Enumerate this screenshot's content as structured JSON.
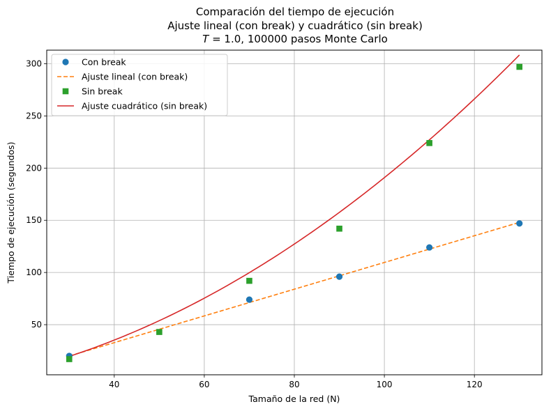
{
  "chart_data": {
    "type": "scatter",
    "title_lines": [
      "Comparación del tiempo de ejecución",
      "Ajuste lineal (con break) y cuadrático (sin break)"
    ],
    "title_math": {
      "variable": "T",
      "value": " = 1.0, 100000 pasos Monte Carlo"
    },
    "xlabel": "Tamaño de la red (N)",
    "ylabel": "Tiempo de ejecución (segundos)",
    "xlim": [
      25,
      135
    ],
    "ylim": [
      2,
      313
    ],
    "x_ticks": [
      40,
      60,
      80,
      100,
      120
    ],
    "y_ticks": [
      50,
      100,
      150,
      200,
      250,
      300
    ],
    "grid": true,
    "legend_position": "upper-left",
    "series": [
      {
        "name": "Con break",
        "kind": "points",
        "marker": "circle",
        "color": "#1f77b4",
        "x": [
          30,
          70,
          90,
          110,
          130
        ],
        "y": [
          20,
          74,
          96,
          124,
          147
        ]
      },
      {
        "name": "Ajuste lineal (con break)",
        "kind": "line",
        "style": "dashed",
        "color": "#ff7f0e",
        "fit": "linear",
        "x_range": [
          30,
          130
        ],
        "coefficients": [
          -18.4,
          1.28
        ]
      },
      {
        "name": "Sin break",
        "kind": "points",
        "marker": "square",
        "color": "#2ca02c",
        "x": [
          30,
          50,
          70,
          90,
          110,
          130
        ],
        "y": [
          17,
          43,
          92,
          142,
          224,
          297
        ]
      },
      {
        "name": "Ajuste cuadrático (sin break)",
        "kind": "line",
        "style": "solid",
        "color": "#d62728",
        "fit": "quadratic",
        "x_range": [
          30,
          130
        ],
        "coefficients": [
          -9.75,
          0.5375,
          0.0146875
        ]
      }
    ]
  }
}
